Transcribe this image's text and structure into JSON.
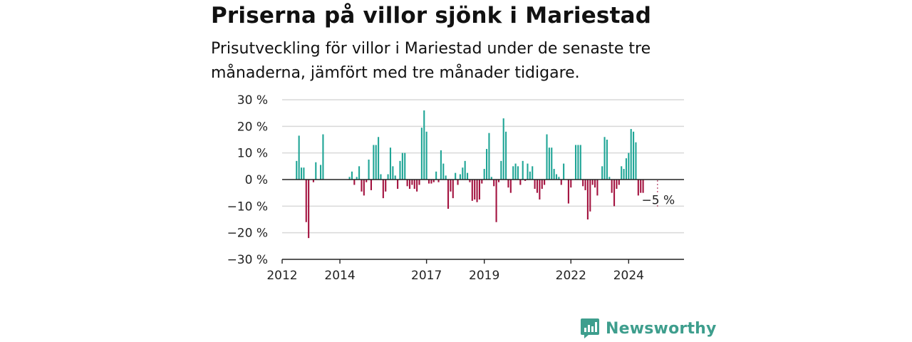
{
  "header": {
    "title": "Priserna på villor sjönk i Mariestad",
    "subtitle": "Prisutveckling för villor i Mariestad under de senaste tre månaderna, jämfört med tre månader tidigare."
  },
  "brand": {
    "name": "Newsworthy",
    "icon": "newsworthy-logo-icon"
  },
  "colors": {
    "positive": "#1fa596",
    "negative": "#a3123f",
    "grid": "#d9d9d9",
    "axis": "#222222"
  },
  "chart_data": {
    "type": "bar",
    "title": "Priserna på villor sjönk i Mariestad",
    "subtitle": "Prisutveckling för villor i Mariestad under de senaste tre månaderna, jämfört med tre månader tidigare.",
    "xlabel": "",
    "ylabel": "",
    "unit": "%",
    "ylim": [
      -30,
      30
    ],
    "yticks": [
      {
        "value": 30,
        "label": "30 %"
      },
      {
        "value": 20,
        "label": "20 %"
      },
      {
        "value": 10,
        "label": "10 %"
      },
      {
        "value": 0,
        "label": "0 %"
      },
      {
        "value": -10,
        "label": "−10 %"
      },
      {
        "value": -20,
        "label": "−20 %"
      },
      {
        "value": -30,
        "label": "−30 %"
      }
    ],
    "xlim": [
      "2012-01",
      "2025-12"
    ],
    "xticks": [
      {
        "date": "2012-01",
        "label": "2012"
      },
      {
        "date": "2014-01",
        "label": "2014"
      },
      {
        "date": "2017-01",
        "label": "2017"
      },
      {
        "date": "2019-01",
        "label": "2019"
      },
      {
        "date": "2022-01",
        "label": "2022"
      },
      {
        "date": "2024-01",
        "label": "2024"
      }
    ],
    "grid": true,
    "annotation": {
      "date": "2025-01",
      "value": -5,
      "label": "−5 %"
    },
    "series": [
      {
        "values": [
          {
            "date": "2012-07",
            "value": 7
          },
          {
            "date": "2012-08",
            "value": 16.5
          },
          {
            "date": "2012-09",
            "value": 4.5
          },
          {
            "date": "2012-10",
            "value": 4.5
          },
          {
            "date": "2012-11",
            "value": -16
          },
          {
            "date": "2012-12",
            "value": -22
          },
          {
            "date": "2013-02",
            "value": -1
          },
          {
            "date": "2013-03",
            "value": 6.5
          },
          {
            "date": "2013-05",
            "value": 5.5
          },
          {
            "date": "2013-06",
            "value": 17
          },
          {
            "date": "2014-05",
            "value": 1
          },
          {
            "date": "2014-06",
            "value": 3
          },
          {
            "date": "2014-07",
            "value": -2
          },
          {
            "date": "2014-08",
            "value": 1
          },
          {
            "date": "2014-09",
            "value": 5
          },
          {
            "date": "2014-10",
            "value": -4.5
          },
          {
            "date": "2014-11",
            "value": -6
          },
          {
            "date": "2014-12",
            "value": -1
          },
          {
            "date": "2015-01",
            "value": 7.5
          },
          {
            "date": "2015-02",
            "value": -4
          },
          {
            "date": "2015-03",
            "value": 13
          },
          {
            "date": "2015-04",
            "value": 13
          },
          {
            "date": "2015-05",
            "value": 16
          },
          {
            "date": "2015-06",
            "value": 2
          },
          {
            "date": "2015-07",
            "value": -7
          },
          {
            "date": "2015-08",
            "value": -4.5
          },
          {
            "date": "2015-09",
            "value": 2
          },
          {
            "date": "2015-10",
            "value": 12
          },
          {
            "date": "2015-11",
            "value": 5
          },
          {
            "date": "2015-12",
            "value": 1.5
          },
          {
            "date": "2016-01",
            "value": -3.5
          },
          {
            "date": "2016-02",
            "value": 7
          },
          {
            "date": "2016-03",
            "value": 10
          },
          {
            "date": "2016-04",
            "value": 10
          },
          {
            "date": "2016-05",
            "value": -2.5
          },
          {
            "date": "2016-06",
            "value": -3.5
          },
          {
            "date": "2016-07",
            "value": -2
          },
          {
            "date": "2016-08",
            "value": -3.5
          },
          {
            "date": "2016-09",
            "value": -4.5
          },
          {
            "date": "2016-10",
            "value": -2
          },
          {
            "date": "2016-11",
            "value": 19.5
          },
          {
            "date": "2016-12",
            "value": 26
          },
          {
            "date": "2017-01",
            "value": 18
          },
          {
            "date": "2017-02",
            "value": -1.5
          },
          {
            "date": "2017-03",
            "value": -1.5
          },
          {
            "date": "2017-04",
            "value": -1
          },
          {
            "date": "2017-05",
            "value": 3
          },
          {
            "date": "2017-06",
            "value": -1
          },
          {
            "date": "2017-07",
            "value": 11
          },
          {
            "date": "2017-08",
            "value": 6
          },
          {
            "date": "2017-09",
            "value": 1.5
          },
          {
            "date": "2017-10",
            "value": -11
          },
          {
            "date": "2017-11",
            "value": -4.5
          },
          {
            "date": "2017-12",
            "value": -7
          },
          {
            "date": "2018-01",
            "value": 2.5
          },
          {
            "date": "2018-02",
            "value": -2
          },
          {
            "date": "2018-03",
            "value": 2
          },
          {
            "date": "2018-04",
            "value": 4.5
          },
          {
            "date": "2018-05",
            "value": 7
          },
          {
            "date": "2018-06",
            "value": 2.5
          },
          {
            "date": "2018-07",
            "value": -1
          },
          {
            "date": "2018-08",
            "value": -8
          },
          {
            "date": "2018-09",
            "value": -7.5
          },
          {
            "date": "2018-10",
            "value": -8.5
          },
          {
            "date": "2018-11",
            "value": -7.5
          },
          {
            "date": "2018-12",
            "value": -1.5
          },
          {
            "date": "2019-01",
            "value": 4
          },
          {
            "date": "2019-02",
            "value": 11.5
          },
          {
            "date": "2019-03",
            "value": 17.5
          },
          {
            "date": "2019-04",
            "value": 1
          },
          {
            "date": "2019-05",
            "value": -2.5
          },
          {
            "date": "2019-06",
            "value": -16
          },
          {
            "date": "2019-07",
            "value": -1
          },
          {
            "date": "2019-08",
            "value": 7
          },
          {
            "date": "2019-09",
            "value": 23
          },
          {
            "date": "2019-10",
            "value": 18
          },
          {
            "date": "2019-11",
            "value": -3
          },
          {
            "date": "2019-12",
            "value": -5
          },
          {
            "date": "2020-01",
            "value": 5
          },
          {
            "date": "2020-02",
            "value": 6
          },
          {
            "date": "2020-03",
            "value": 5
          },
          {
            "date": "2020-04",
            "value": -2
          },
          {
            "date": "2020-05",
            "value": 7
          },
          {
            "date": "2020-06",
            "value": -0.5
          },
          {
            "date": "2020-07",
            "value": 6
          },
          {
            "date": "2020-08",
            "value": 3
          },
          {
            "date": "2020-09",
            "value": 5
          },
          {
            "date": "2020-10",
            "value": -3.5
          },
          {
            "date": "2020-11",
            "value": -5
          },
          {
            "date": "2020-12",
            "value": -7.5
          },
          {
            "date": "2021-01",
            "value": -3.5
          },
          {
            "date": "2021-02",
            "value": -2
          },
          {
            "date": "2021-03",
            "value": 17
          },
          {
            "date": "2021-04",
            "value": 12
          },
          {
            "date": "2021-05",
            "value": 12
          },
          {
            "date": "2021-06",
            "value": 4
          },
          {
            "date": "2021-07",
            "value": 2
          },
          {
            "date": "2021-08",
            "value": 1
          },
          {
            "date": "2021-09",
            "value": -2
          },
          {
            "date": "2021-10",
            "value": 6
          },
          {
            "date": "2021-12",
            "value": -9
          },
          {
            "date": "2022-01",
            "value": -3
          },
          {
            "date": "2022-03",
            "value": 13
          },
          {
            "date": "2022-04",
            "value": 13
          },
          {
            "date": "2022-05",
            "value": 13
          },
          {
            "date": "2022-06",
            "value": -2.5
          },
          {
            "date": "2022-07",
            "value": -4
          },
          {
            "date": "2022-08",
            "value": -15
          },
          {
            "date": "2022-09",
            "value": -12
          },
          {
            "date": "2022-10",
            "value": -2
          },
          {
            "date": "2022-11",
            "value": -3
          },
          {
            "date": "2022-12",
            "value": -6
          },
          {
            "date": "2023-02",
            "value": 5
          },
          {
            "date": "2023-03",
            "value": 16
          },
          {
            "date": "2023-04",
            "value": 15
          },
          {
            "date": "2023-05",
            "value": 1
          },
          {
            "date": "2023-06",
            "value": -5
          },
          {
            "date": "2023-07",
            "value": -10
          },
          {
            "date": "2023-08",
            "value": -3.5
          },
          {
            "date": "2023-09",
            "value": -2
          },
          {
            "date": "2023-10",
            "value": 5
          },
          {
            "date": "2023-11",
            "value": 4
          },
          {
            "date": "2023-12",
            "value": 8
          },
          {
            "date": "2024-01",
            "value": 10
          },
          {
            "date": "2024-02",
            "value": 19
          },
          {
            "date": "2024-03",
            "value": 18
          },
          {
            "date": "2024-04",
            "value": 14
          },
          {
            "date": "2024-05",
            "value": -6
          },
          {
            "date": "2024-06",
            "value": -5
          },
          {
            "date": "2024-07",
            "value": -5
          }
        ]
      }
    ]
  }
}
